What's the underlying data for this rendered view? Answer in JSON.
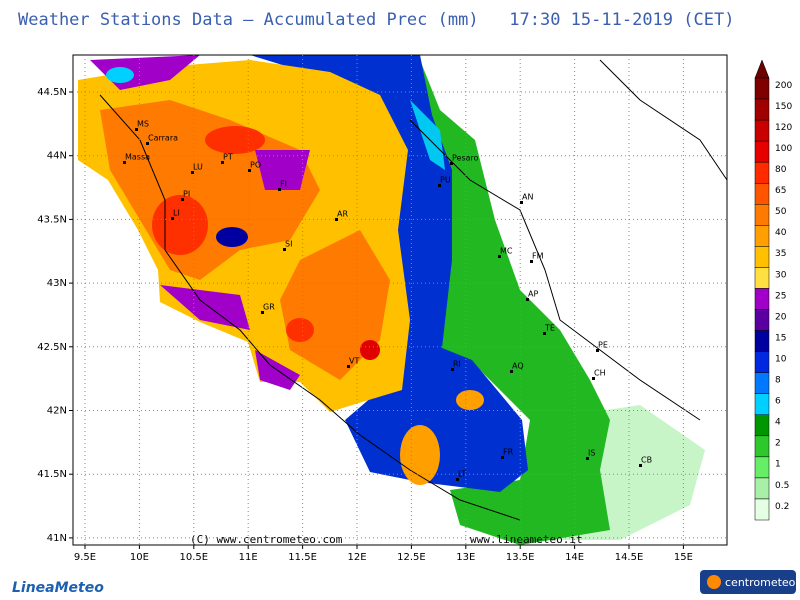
{
  "header": {
    "title": "Weather Stations Data — Accumulated Prec (mm)   17:30 15-11-2019 (CET)"
  },
  "map": {
    "lon_ticks": [
      {
        "value": 9.5,
        "label": "9.5E"
      },
      {
        "value": 10,
        "label": "10E"
      },
      {
        "value": 10.5,
        "label": "10.5E"
      },
      {
        "value": 11,
        "label": "11E"
      },
      {
        "value": 11.5,
        "label": "11.5E"
      },
      {
        "value": 12,
        "label": "12E"
      },
      {
        "value": 12.5,
        "label": "12.5E"
      },
      {
        "value": 13,
        "label": "13E"
      },
      {
        "value": 13.5,
        "label": "13.5E"
      },
      {
        "value": 14,
        "label": "14E"
      },
      {
        "value": 14.5,
        "label": "14.5E"
      },
      {
        "value": 15,
        "label": "15E"
      }
    ],
    "lat_ticks": [
      {
        "value": 44.5,
        "label": "44.5N"
      },
      {
        "value": 44,
        "label": "44N"
      },
      {
        "value": 43.5,
        "label": "43.5N"
      },
      {
        "value": 43,
        "label": "43N"
      },
      {
        "value": 42.5,
        "label": "42.5N"
      },
      {
        "value": 42,
        "label": "42N"
      },
      {
        "value": 41.5,
        "label": "41.5N"
      },
      {
        "value": 41,
        "label": "41N"
      }
    ],
    "cities": [
      "MS",
      "Carrara",
      "Massa",
      "LU",
      "PT",
      "PO",
      "FI",
      "PI",
      "LI",
      "SI",
      "AR",
      "GR",
      "VT",
      "RI",
      "AQ",
      "TE",
      "PE",
      "CH",
      "AP",
      "MC",
      "FM",
      "AN",
      "Pesaro",
      "PU",
      "FR",
      "LT",
      "IS",
      "CB"
    ],
    "credits": [
      "(C)  www.centrometeo.com",
      "www.lineameteo.it"
    ]
  },
  "legend": {
    "labels": [
      200,
      150,
      120,
      100,
      80,
      65,
      50,
      40,
      35,
      30,
      25,
      20,
      15,
      10,
      8,
      6,
      4,
      2,
      1,
      0.5,
      0.2
    ],
    "colors": [
      "#800000",
      "#a00000",
      "#c80000",
      "#e60000",
      "#ff2a00",
      "#ff5500",
      "#ff7a00",
      "#ffa000",
      "#ffc000",
      "#ffe040",
      "#a000c8",
      "#5a00a0",
      "#0000a0",
      "#0028e0",
      "#0078ff",
      "#00d0ff",
      "#009600",
      "#2cc82c",
      "#66ee66",
      "#a8f0a8",
      "#e4ffe4"
    ],
    "top_color": "#6a0000"
  },
  "logos": {
    "left": "LineaMeteo",
    "right": "centrometeo"
  }
}
